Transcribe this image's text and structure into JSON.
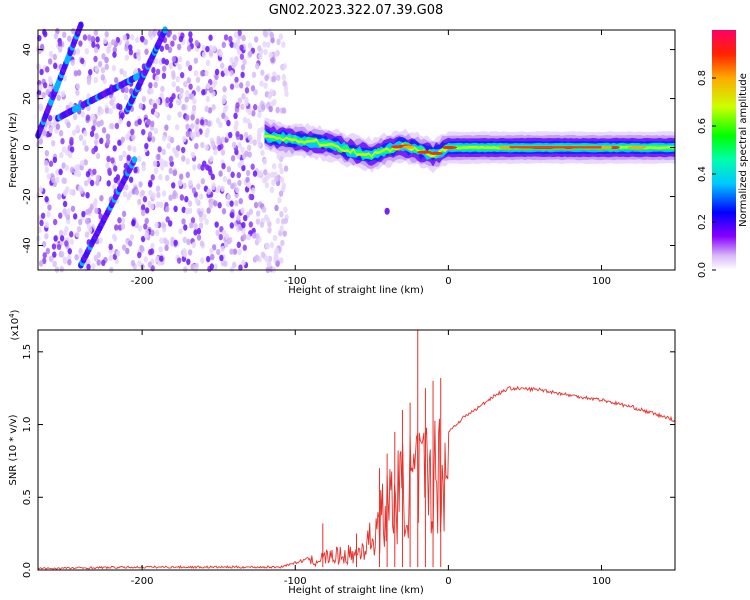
{
  "title": "GN02.2023.322.07.39.G08",
  "chart_data": [
    {
      "type": "heatmap",
      "xlabel": "Height of straight line (km)",
      "ylabel": "Frequency (Hz)",
      "xlim": [
        -268,
        148
      ],
      "ylim": [
        -50,
        48
      ],
      "xticks": [
        -200,
        -100,
        0,
        100
      ],
      "yticks": [
        -40,
        -20,
        0,
        20,
        40
      ],
      "colorbar": {
        "label": "Normalized spectral amplitude",
        "range": [
          0,
          1
        ],
        "ticks": [
          0.0,
          0.2,
          0.4,
          0.6,
          0.8
        ]
      },
      "features": {
        "noise_region_x": [
          -268,
          -105
        ],
        "streaks": [
          {
            "from": [
              -268,
              5
            ],
            "to": [
              -240,
              50
            ]
          },
          {
            "from": [
              -255,
              12
            ],
            "to": [
              -200,
              30
            ]
          },
          {
            "from": [
              -240,
              -48
            ],
            "to": [
              -205,
              -5
            ]
          },
          {
            "from": [
              -210,
              15
            ],
            "to": [
              -185,
              48
            ]
          }
        ],
        "signal_line": [
          [
            -120,
            5
          ],
          [
            -110,
            4
          ],
          [
            -100,
            3
          ],
          [
            -90,
            2.5
          ],
          [
            -80,
            1.5
          ],
          [
            -70,
            0
          ],
          [
            -60,
            -2
          ],
          [
            -50,
            -3
          ],
          [
            -40,
            -1
          ],
          [
            -30,
            1
          ],
          [
            -20,
            -1
          ],
          [
            -10,
            -3
          ],
          [
            0,
            0
          ],
          [
            20,
            0
          ],
          [
            50,
            0
          ],
          [
            100,
            0
          ],
          [
            148,
            0
          ]
        ]
      }
    },
    {
      "type": "line",
      "xlabel": "Height of straight line (km)",
      "ylabel": "SNR (10 * v/v)",
      "y_multiplier": "(x10",
      "y_multiplier_exp": "4",
      "y_multiplier_close": ")",
      "xlim": [
        -268,
        148
      ],
      "ylim": [
        0,
        1.65
      ],
      "xticks": [
        -200,
        -100,
        0,
        100
      ],
      "yticks": [
        0.0,
        0.5,
        1.0,
        1.5
      ],
      "series": [
        {
          "color": "#e8302a",
          "envelope": [
            [
              -268,
              0.01
            ],
            [
              -200,
              0.02
            ],
            [
              -110,
              0.02
            ],
            [
              -90,
              0.08
            ],
            [
              -80,
              0.12
            ],
            [
              -60,
              0.15
            ],
            [
              -50,
              0.3
            ],
            [
              -40,
              0.6
            ],
            [
              -30,
              0.75
            ],
            [
              -20,
              0.85
            ],
            [
              -10,
              0.9
            ],
            [
              0,
              0.95
            ],
            [
              10,
              1.05
            ],
            [
              20,
              1.12
            ],
            [
              30,
              1.2
            ],
            [
              40,
              1.25
            ],
            [
              60,
              1.24
            ],
            [
              80,
              1.2
            ],
            [
              100,
              1.17
            ],
            [
              120,
              1.12
            ],
            [
              148,
              1.03
            ]
          ],
          "spikes": [
            [
              -82,
              0.32
            ],
            [
              -60,
              0.25
            ],
            [
              -45,
              0.7
            ],
            [
              -40,
              0.8
            ],
            [
              -35,
              0.95
            ],
            [
              -30,
              1.1
            ],
            [
              -25,
              1.15
            ],
            [
              -20,
              1.65
            ],
            [
              -15,
              1.25
            ],
            [
              -10,
              1.3
            ],
            [
              -5,
              1.32
            ]
          ]
        }
      ]
    }
  ]
}
